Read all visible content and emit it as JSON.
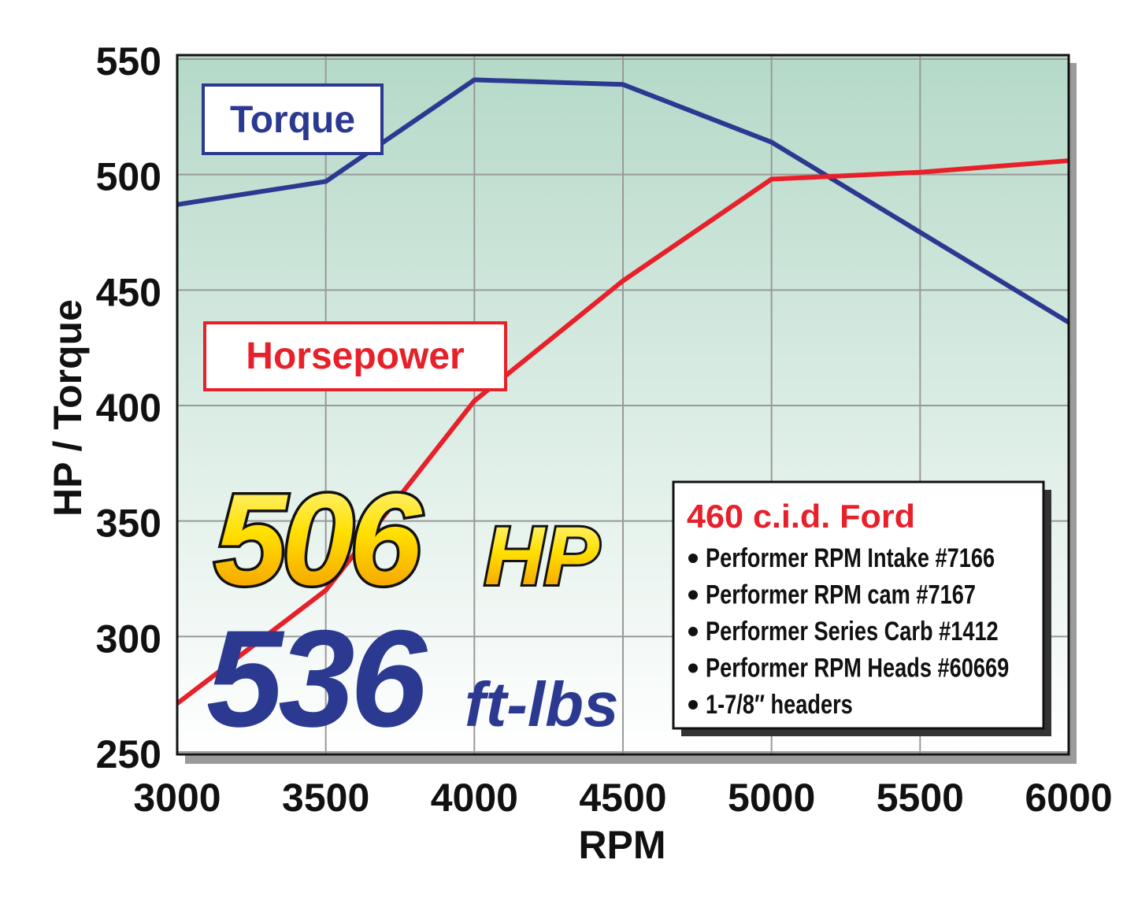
{
  "chart_data": {
    "type": "line",
    "x_label": "RPM",
    "y_label": "HP / Torque",
    "x": [
      3000,
      3500,
      4000,
      4500,
      5000,
      5500,
      6000
    ],
    "series": [
      {
        "name": "Torque",
        "color": "#2b3990",
        "values": [
          487,
          497,
          541,
          539,
          514,
          475,
          436
        ]
      },
      {
        "name": "Horsepower",
        "color": "#e8202a",
        "values": [
          271,
          320,
          402,
          454,
          498,
          501,
          506
        ]
      }
    ],
    "xlim": [
      3000,
      6000
    ],
    "xticks": [
      3000,
      3500,
      4000,
      4500,
      5000,
      5500,
      6000
    ],
    "ylim": [
      250,
      550
    ],
    "yticks": [
      250,
      300,
      350,
      400,
      450,
      500,
      550
    ],
    "grid": true,
    "annotations": {
      "hp": "506",
      "hp_unit": "HP",
      "torque": "536",
      "torque_unit": "ft-lbs"
    },
    "spec_box": {
      "title": "460 c.i.d. Ford",
      "items": [
        "Performer RPM Intake #7166",
        "Performer RPM cam #7167",
        "Performer Series Carb #1412",
        "Performer RPM Heads #60669",
        "1-7/8″ headers"
      ]
    }
  }
}
